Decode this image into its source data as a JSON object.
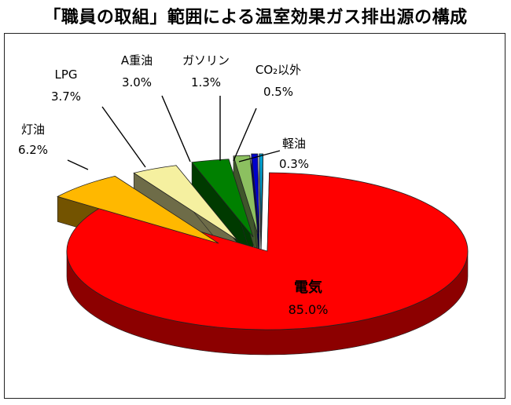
{
  "title": "「職員の取組」範囲による温室効果ガス排出源の構成",
  "chart_data": {
    "type": "pie",
    "title": "「職員の取組」範囲による温室効果ガス排出源の構成",
    "slices": [
      {
        "label": "電気",
        "percent_label": "85.0%",
        "value": 85.0,
        "color": "#ff0000"
      },
      {
        "label": "灯油",
        "percent_label": "6.2%",
        "value": 6.2,
        "color": "#ffb800"
      },
      {
        "label": "LPG",
        "percent_label": "3.7%",
        "value": 3.7,
        "color": "#f5f0a0"
      },
      {
        "label": "A重油",
        "percent_label": "3.0%",
        "value": 3.0,
        "color": "#008000"
      },
      {
        "label": "ガソリン",
        "percent_label": "1.3%",
        "value": 1.3,
        "color": "#8cc060"
      },
      {
        "label": "CO₂以外",
        "percent_label": "0.5%",
        "value": 0.5,
        "color": "#0000cc"
      },
      {
        "label": "軽油",
        "percent_label": "0.3%",
        "value": 0.3,
        "color": "#00a0d0"
      }
    ],
    "legend": "none"
  }
}
